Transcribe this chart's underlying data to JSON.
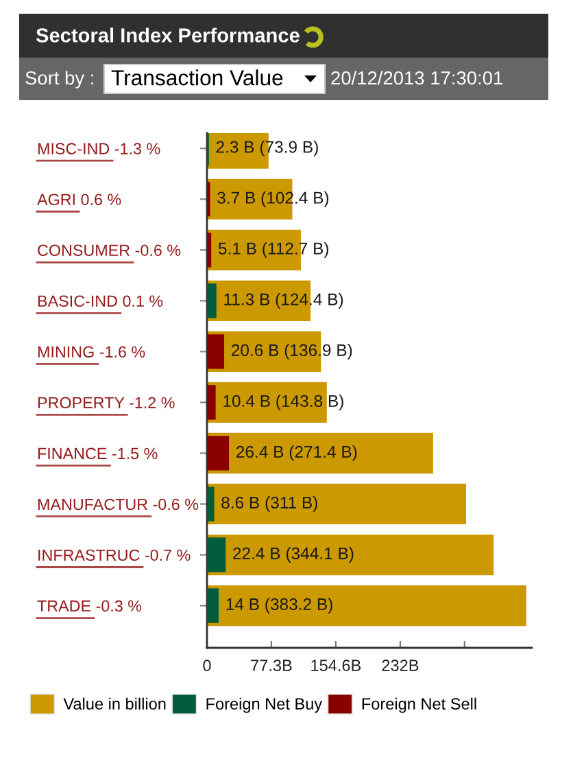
{
  "chart_data": {
    "type": "bar",
    "orientation": "horizontal",
    "title": "Sectoral Index Performance",
    "subtitle": "Sort by :",
    "annotations": [
      "Transaction Value",
      "20/12/2013 17:30:01"
    ],
    "categories": [
      "MISC-IND -1.3 %",
      "AGRI 0.6 %",
      "CONSUMER -0.6 %",
      "BASIC-IND 0.1 %",
      "MINING -1.6 %",
      "PROPERTY -1.2 %",
      "FINANCE -1.5 %",
      "MANUFACTUR -0.6 %",
      "INFRASTRUC -0.7 %",
      "TRADE -0.3 %"
    ],
    "series": [
      {
        "name": "Value in billion",
        "color": "#cc9900",
        "values": [
          73.9,
          102.4,
          112.7,
          124.4,
          136.9,
          143.8,
          271.4,
          311,
          344.1,
          383.2
        ],
        "value_labels": [
          "2.3 B (73.9 B)",
          "3.7 B (102.4 B)",
          "5.1 B (112.7 B)",
          "11.3 B (124.4 B)",
          "20.6 B (136.9 B)",
          "10.4 B (143.8 B)",
          "26.4 B (271.4 B)",
          "8.6 B (311 B)",
          "22.4 B (344.1 B)",
          "14 B (383.2 B)"
        ]
      },
      {
        "name": "Foreign Net Buy",
        "color": "#005c3a",
        "values": [
          2.3,
          null,
          null,
          11.3,
          null,
          null,
          null,
          8.6,
          22.4,
          14
        ]
      },
      {
        "name": "Foreign Net Sell",
        "color": "#880000",
        "values": [
          null,
          3.7,
          5.1,
          null,
          20.6,
          10.4,
          26.4,
          null,
          null,
          null
        ]
      }
    ],
    "xlim": [
      0,
      390
    ],
    "xticks": [
      0,
      {
        "value": 77.3,
        "label": "77.3B"
      },
      {
        "value": 154.6,
        "label": "154.6B"
      },
      {
        "value": 232,
        "label": "232B"
      },
      {
        "value": 309.2,
        "label": null
      }
    ],
    "legend": "bottom"
  }
}
